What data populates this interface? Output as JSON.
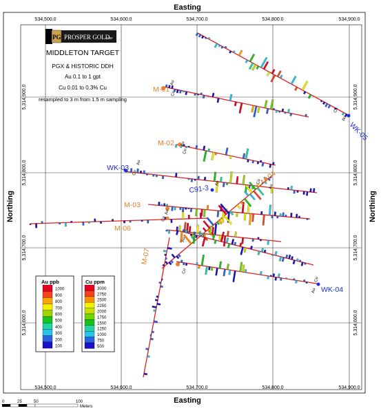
{
  "map": {
    "axis_x_title": "Easting",
    "axis_y_title": "Northing",
    "easting_ticks": [
      "534,500.0",
      "534,600.0",
      "534,700.0",
      "534,800.0",
      "534,900.0"
    ],
    "northing_ticks": [
      "5,314,900.0",
      "5,314,800.0",
      "5,314,700.0",
      "5,314,600.0"
    ],
    "logo_text": "PROSPER GOLD",
    "logo_suffix": "CORP",
    "title": "MIDDLETON TARGET",
    "subtitle": "PGX & HISTORIC DDH",
    "au_range": "Au 0.1 to 1 gpt",
    "cu_range": "Cu 0.01 to 0.3% Cu",
    "resample_note": "resampled to 3 m from 1.5 m sampling",
    "element_au": "Au",
    "element_cu": "Cu",
    "scale_units": "Meters",
    "scale_ticks": [
      "0",
      "25",
      "50",
      "100"
    ]
  },
  "holes": [
    {
      "id": "m01",
      "label": "M-01",
      "color": "orange"
    },
    {
      "id": "m02",
      "label": "M-02",
      "color": "orange"
    },
    {
      "id": "m03",
      "label": "M-03",
      "color": "orange"
    },
    {
      "id": "m04",
      "label": "M-04",
      "color": "orange"
    },
    {
      "id": "m06",
      "label": "M-06",
      "color": "orange"
    },
    {
      "id": "m07",
      "label": "M-07",
      "color": "orange"
    },
    {
      "id": "wk03",
      "label": "WK-03",
      "color": "blue"
    },
    {
      "id": "wk04",
      "label": "WK-04",
      "color": "blue"
    },
    {
      "id": "wk05",
      "label": "WK-05",
      "color": "blue"
    },
    {
      "id": "c91",
      "label": "C91-3",
      "color": "blue"
    }
  ],
  "legend_au": {
    "title": "Au ppb",
    "items": [
      {
        "label": "1000",
        "color": "#e8001f"
      },
      {
        "label": "900",
        "color": "#f5411f"
      },
      {
        "label": "800",
        "color": "#ffa500"
      },
      {
        "label": "700",
        "color": "#f6f000"
      },
      {
        "label": "600",
        "color": "#9ed400"
      },
      {
        "label": "500",
        "color": "#19c31e"
      },
      {
        "label": "400",
        "color": "#21d4a0"
      },
      {
        "label": "300",
        "color": "#26c4e8"
      },
      {
        "label": "200",
        "color": "#2a62e0"
      },
      {
        "label": "100",
        "color": "#1a10c8"
      }
    ]
  },
  "legend_cu": {
    "title": "Cu ppm",
    "items": [
      {
        "label": "3000",
        "color": "#e8001f"
      },
      {
        "label": "2750",
        "color": "#f5411f"
      },
      {
        "label": "2500",
        "color": "#ff8c00"
      },
      {
        "label": "2250",
        "color": "#f6f000"
      },
      {
        "label": "2000",
        "color": "#c6e000"
      },
      {
        "label": "1750",
        "color": "#6fd400"
      },
      {
        "label": "1500",
        "color": "#19c31e"
      },
      {
        "label": "1250",
        "color": "#21d4a0"
      },
      {
        "label": "1000",
        "color": "#26c4e8"
      },
      {
        "label": "750",
        "color": "#2a62e0"
      },
      {
        "label": "500",
        "color": "#1a10c8"
      }
    ]
  }
}
